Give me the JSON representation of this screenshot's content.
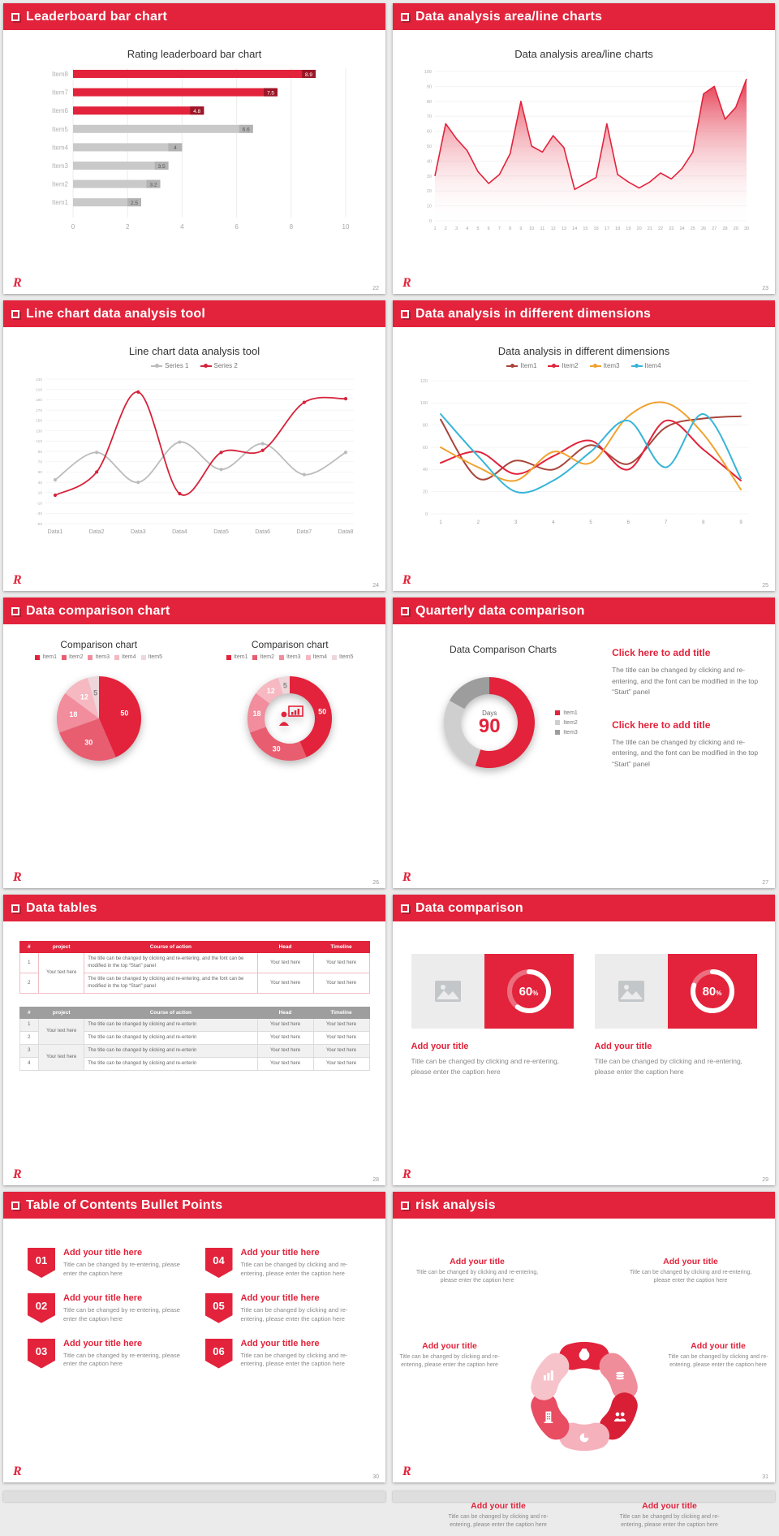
{
  "logo": "R",
  "accent": "#e2233b",
  "slides": [
    {
      "header": "Leaderboard bar chart",
      "page": "22",
      "chart": {
        "type": "bar",
        "title": "Rating leaderboard bar chart",
        "categories": [
          "Item1",
          "Item2",
          "Item3",
          "Item4",
          "Item5",
          "Item6",
          "Item7",
          "Item8"
        ],
        "values": [
          2.5,
          3.2,
          3.5,
          4,
          6.6,
          4.8,
          7.5,
          8.9
        ],
        "highlighted_indices": [
          5,
          6,
          7
        ],
        "bar_color": "#c9c9c9",
        "bar_chip_color": "#b3b3b3",
        "highlight_color": "#e2233b",
        "highlight_chip_color": "#9c1628",
        "xticks": [
          0,
          2,
          4,
          6,
          8,
          10
        ],
        "xlim": [
          0,
          10
        ]
      }
    },
    {
      "header": "Data analysis area/line charts",
      "page": "23",
      "chart": {
        "type": "area",
        "title": "Data analysis area/line charts",
        "x_labels": [
          "1",
          "2",
          "3",
          "4",
          "5",
          "6",
          "7",
          "8",
          "9",
          "10",
          "11",
          "12",
          "13",
          "14",
          "15",
          "16",
          "17",
          "18",
          "19",
          "20",
          "21",
          "22",
          "23",
          "24",
          "25",
          "26",
          "27",
          "28",
          "29",
          "30"
        ],
        "values": [
          30,
          65,
          55,
          47,
          33,
          25,
          31,
          45,
          80,
          50,
          46,
          57,
          49,
          21,
          25,
          29,
          65,
          31,
          26,
          22,
          26,
          32,
          28,
          35,
          46,
          85,
          90,
          68,
          76,
          95
        ],
        "yticks": [
          0,
          10,
          20,
          30,
          40,
          50,
          60,
          70,
          80,
          90,
          100
        ],
        "ylim": [
          0,
          100
        ],
        "color": "#e2233b"
      }
    },
    {
      "header": "Line chart data analysis tool",
      "page": "24",
      "chart": {
        "type": "line",
        "title": "Line chart data analysis tool",
        "x_labels": [
          "Data1",
          "Data2",
          "Data3",
          "Data4",
          "Data5",
          "Data6",
          "Data7",
          "Data8"
        ],
        "ylim": [
          -50,
          230
        ],
        "yticks": [
          230,
          210,
          190,
          170,
          150,
          130,
          110,
          90,
          70,
          50,
          30,
          10,
          -10,
          -30,
          -50
        ],
        "series": [
          {
            "name": "Series 1",
            "color": "#bcbcbc",
            "values": [
              35,
              88,
              30,
              108,
              55,
              105,
              45,
              88
            ]
          },
          {
            "name": "Series 2",
            "color": "#d5233b",
            "values": [
              5,
              50,
              205,
              8,
              88,
              92,
              185,
              192
            ]
          }
        ]
      }
    },
    {
      "header": "Data analysis in different dimensions",
      "page": "25",
      "chart": {
        "type": "line",
        "title": "Data analysis in different dimensions",
        "x_labels": [
          "1",
          "2",
          "3",
          "4",
          "5",
          "6",
          "7",
          "8",
          "9"
        ],
        "ylim": [
          0,
          120
        ],
        "yticks": [
          0,
          20,
          40,
          60,
          80,
          100,
          120
        ],
        "series": [
          {
            "name": "Item1",
            "color": "#a8453a",
            "values": [
              85,
              32,
              48,
              40,
              62,
              45,
              78,
              86,
              88
            ]
          },
          {
            "name": "Item2",
            "color": "#e2233b",
            "values": [
              46,
              56,
              36,
              52,
              66,
              40,
              84,
              58,
              30
            ]
          },
          {
            "name": "Item3",
            "color": "#f0a22e",
            "values": [
              60,
              42,
              30,
              56,
              46,
              88,
              100,
              72,
              22
            ]
          },
          {
            "name": "Item4",
            "color": "#36b5d8",
            "values": [
              90,
              52,
              20,
              30,
              56,
              84,
              42,
              90,
              32
            ]
          }
        ]
      }
    },
    {
      "header": "Data comparison chart",
      "page": "26",
      "charts": [
        {
          "type": "pie",
          "title": "Comparison chart",
          "legend": [
            "Item1",
            "Item2",
            "Item3",
            "Item4",
            "Item5"
          ],
          "values": [
            50,
            30,
            18,
            12,
            5
          ],
          "colors": [
            "#e2233b",
            "#e95d70",
            "#f18d9c",
            "#f6b8c1",
            "#eed6da"
          ]
        },
        {
          "type": "donut",
          "title": "Comparison chart",
          "legend": [
            "Item1",
            "Item2",
            "Item3",
            "Item4",
            "Item5"
          ],
          "values": [
            50,
            30,
            18,
            12,
            5
          ],
          "colors": [
            "#e2233b",
            "#e95d70",
            "#f18d9c",
            "#f6b8c1",
            "#eed6da"
          ],
          "center_icon": "presenter-icon"
        }
      ]
    },
    {
      "header": "Quarterly data comparison",
      "page": "27",
      "chart": {
        "type": "donut",
        "title": "Data Comparison Charts",
        "center_label": "Days",
        "center_value": "90",
        "legend": [
          "Item1",
          "Item2",
          "Item3"
        ],
        "values": [
          55,
          28,
          17
        ],
        "colors": [
          "#e2233b",
          "#cfcfcf",
          "#9d9d9d"
        ]
      },
      "blocks": [
        {
          "title": "Click here to add title",
          "body": "The title can be changed by clicking and re-entering, and the font can be modified in the top “Start” panel"
        },
        {
          "title": "Click here to add title",
          "body": "The title can be changed by clicking and re-entering, and the font can be modified in the top “Start” panel"
        }
      ]
    },
    {
      "header": "Data tables",
      "page": "28",
      "tables": [
        {
          "theme": "red",
          "columns": [
            "#",
            "project",
            "Course of action",
            "Head",
            "Timeline"
          ],
          "rows": [
            [
              {
                "t": "1"
              },
              {
                "t": "Your text here",
                "rs": 2
              },
              {
                "t": "The title can be changed by clicking and re-entering, and the font can be modified in the top “Start” panel"
              },
              {
                "t": "Your text here"
              },
              {
                "t": "Your text here"
              }
            ],
            [
              {
                "t": "2"
              },
              null,
              {
                "t": "The title can be changed by clicking and re-entering, and the font can be modified in the top “Start” panel"
              },
              {
                "t": "Your text here"
              },
              {
                "t": "Your text here"
              }
            ]
          ]
        },
        {
          "theme": "gray",
          "columns": [
            "#",
            "project",
            "Course of action",
            "Head",
            "Timeline"
          ],
          "rows": [
            [
              {
                "t": "1"
              },
              {
                "t": "Your text here",
                "rs": 2
              },
              {
                "t": "The title can be changed by clicking and re-enterin"
              },
              {
                "t": "Your text here"
              },
              {
                "t": "Your text here"
              }
            ],
            [
              {
                "t": "2"
              },
              null,
              {
                "t": "The title can be changed by clicking and re-enterin"
              },
              {
                "t": "Your text here"
              },
              {
                "t": "Your text here"
              }
            ],
            [
              {
                "t": "3"
              },
              {
                "t": "Your text here",
                "rs": 2
              },
              {
                "t": "The title can be changed by clicking and re-enterin"
              },
              {
                "t": "Your text here"
              },
              {
                "t": "Your text here"
              }
            ],
            [
              {
                "t": "4"
              },
              null,
              {
                "t": "The title can be changed by clicking and re-enterin"
              },
              {
                "t": "Your text here"
              },
              {
                "t": "Your text here"
              }
            ]
          ]
        }
      ]
    },
    {
      "header": "Data comparison",
      "page": "29",
      "cards": [
        {
          "percent": 60,
          "title": "Add your title",
          "body": "Title can be changed by clicking and re-entering, please enter the caption here"
        },
        {
          "percent": 80,
          "title": "Add your title",
          "body": "Title can be changed by clicking and re-entering, please enter the caption here"
        }
      ]
    },
    {
      "header": "Table of Contents Bullet Points",
      "page": "30",
      "items": [
        {
          "num": "01",
          "title": "Add your title here",
          "body": "Title can be changed by re-entering, please enter the caption here"
        },
        {
          "num": "02",
          "title": "Add your title here",
          "body": "Title can be changed by re-entering, please enter the caption here"
        },
        {
          "num": "03",
          "title": "Add your title here",
          "body": "Title can be changed by re-entering, please enter the caption here"
        },
        {
          "num": "04",
          "title": "Add your title here",
          "body": "Title can be changed by clicking and re-entering, please enter the caption here"
        },
        {
          "num": "05",
          "title": "Add your title here",
          "body": "Title can be changed by clicking and re-entering, please enter the caption here"
        },
        {
          "num": "06",
          "title": "Add your title here",
          "body": "Title can be changed by clicking and re-entering, please enter the caption here"
        }
      ]
    },
    {
      "header": "risk analysis",
      "page": "31",
      "wheel": {
        "colors": [
          "#e2233b",
          "#f08d9b",
          "#d81f36",
          "#f5b1bc",
          "#e84d62",
          "#f6c3cb"
        ],
        "icons": [
          "money-bag-icon",
          "coins-icon",
          "people-icon",
          "pie-icon",
          "building-icon",
          "chart-icon"
        ]
      },
      "labels": [
        {
          "position": "top-left",
          "title": "Add your title",
          "body": "Title can be changed by clicking and re-entering, please enter the caption here"
        },
        {
          "position": "top-right",
          "title": "Add your title",
          "body": "Title can be changed by clicking and re-entering, please enter the caption here"
        },
        {
          "position": "mid-left",
          "title": "Add your title",
          "body": "Title can be changed by clicking and re-entering, please enter the caption here"
        },
        {
          "position": "mid-right",
          "title": "Add your title",
          "body": "Title can be changed by clicking and re-entering, please enter the caption here"
        },
        {
          "position": "bottom-left",
          "title": "Add your title",
          "body": "Title can be changed by clicking and re-entering, please enter the caption here"
        },
        {
          "position": "bottom-right",
          "title": "Add your title",
          "body": "Title can be changed by clicking and re-entering, please enter the caption here"
        }
      ]
    }
  ]
}
